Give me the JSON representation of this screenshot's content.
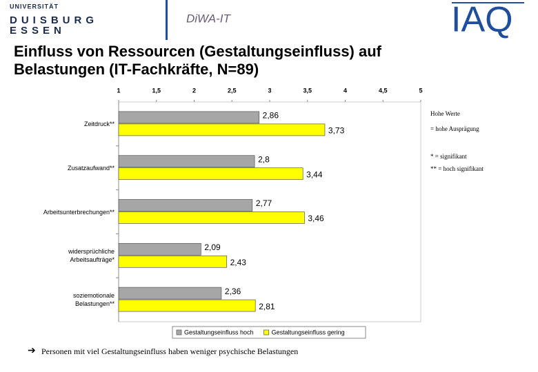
{
  "header": {
    "university": [
      "UNIVERSITÄT",
      "DUISBURG",
      "ESSEN"
    ],
    "project": "DiWA-IT",
    "institute": "IAQ"
  },
  "chart_data": {
    "type": "hbar",
    "title": "Einfluss von Ressourcen (Gestaltungseinfluss) auf\nBelastungen (IT-Fachkräfte, N=89)",
    "categories": [
      "Zeitdruck**",
      "Zusatzaufwand**",
      "Arbeitsunterbrechungen**",
      "widersprüchliche\nArbeitsaufträge*",
      "soziemotionale\nBelastungen**"
    ],
    "series": [
      {
        "name": "Gestaltungseinfluss hoch",
        "color": "#a6a6a6",
        "values": [
          2.86,
          2.8,
          2.77,
          2.09,
          2.36
        ],
        "value_labels": [
          "2,86",
          "2,8",
          "2,77",
          "2,09",
          "2,36"
        ]
      },
      {
        "name": "Gestaltungseinfluss gering",
        "color": "#ffff00",
        "values": [
          3.73,
          3.44,
          3.46,
          2.43,
          2.81
        ],
        "value_labels": [
          "3,73",
          "3,44",
          "3,46",
          "2,43",
          "2,81"
        ]
      }
    ],
    "xlim": [
      1,
      5
    ],
    "xticks": [
      1,
      {
        "value": 1.5,
        "label": "1,5"
      },
      2,
      {
        "value": 2.5,
        "label": "2,5"
      },
      3,
      {
        "value": 3.5,
        "label": "3,5"
      },
      4,
      {
        "value": 4.5,
        "label": "4,5"
      },
      5
    ],
    "legend": "bottom"
  },
  "notes": [
    "Hohe Werte",
    "= hohe Ausprägung",
    "* = signifikant",
    "** = hoch signifikant"
  ],
  "footer": "Personen mit viel Gestaltungseinfluss haben weniger psychische Belastungen"
}
